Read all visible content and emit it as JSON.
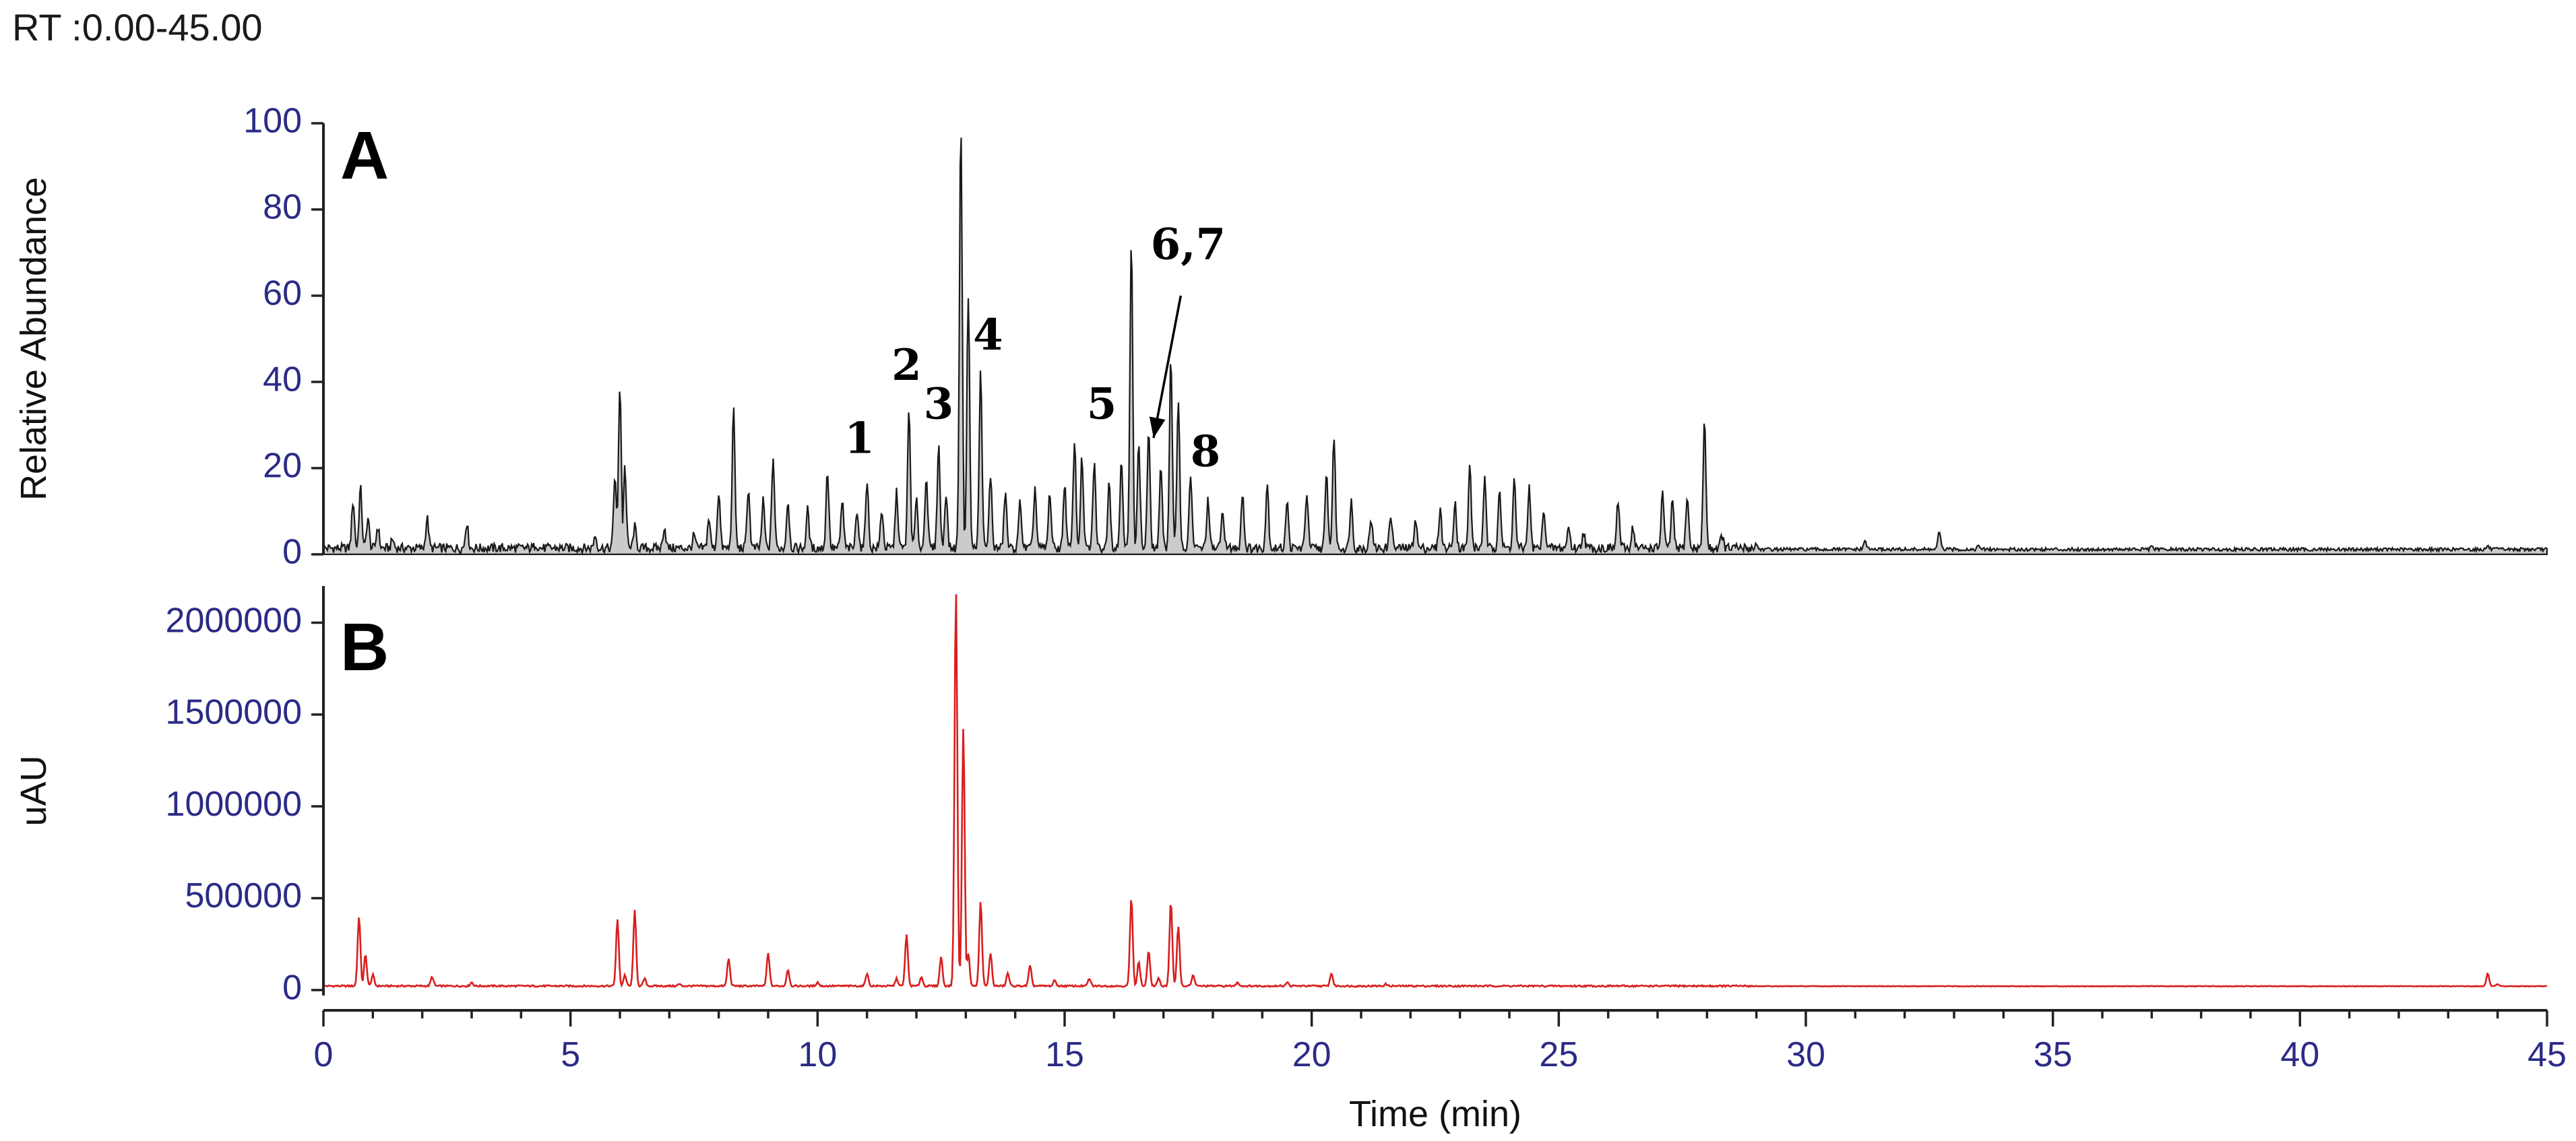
{
  "header": {
    "rt_range": "RT :0.00-45.00"
  },
  "colors": {
    "trace_a": "#1a1a1a",
    "trace_b": "#d81e1e",
    "tick_labels": "#2b2b86"
  },
  "chart_data": [
    {
      "type": "line",
      "panel_label": "A",
      "xlabel": "",
      "ylabel": "Relative Abundance",
      "xlim": [
        0,
        45
      ],
      "ylim": [
        0,
        100
      ],
      "x_ticks": [
        0,
        5,
        10,
        15,
        20,
        25,
        30,
        35,
        40,
        45
      ],
      "y_ticks": [
        0,
        20,
        40,
        60,
        80,
        100
      ],
      "baseline": 1,
      "peaks": [
        [
          0.6,
          12
        ],
        [
          0.75,
          15
        ],
        [
          0.9,
          8
        ],
        [
          1.1,
          6
        ],
        [
          1.4,
          3
        ],
        [
          2.1,
          8
        ],
        [
          2.9,
          7
        ],
        [
          4.3,
          2
        ],
        [
          5.5,
          4
        ],
        [
          5.9,
          18
        ],
        [
          6.0,
          39
        ],
        [
          6.1,
          20
        ],
        [
          6.3,
          6
        ],
        [
          6.9,
          6
        ],
        [
          7.5,
          4
        ],
        [
          7.8,
          8
        ],
        [
          8.0,
          14
        ],
        [
          8.3,
          33
        ],
        [
          8.6,
          15
        ],
        [
          8.9,
          12
        ],
        [
          9.1,
          22
        ],
        [
          9.4,
          12
        ],
        [
          9.8,
          10
        ],
        [
          10.2,
          19
        ],
        [
          10.5,
          12
        ],
        [
          10.8,
          10
        ],
        [
          11.0,
          17
        ],
        [
          11.3,
          10
        ],
        [
          11.6,
          14
        ],
        [
          11.85,
          33
        ],
        [
          12.0,
          12
        ],
        [
          12.2,
          18
        ],
        [
          12.45,
          25
        ],
        [
          12.6,
          14
        ],
        [
          12.9,
          100
        ],
        [
          13.05,
          60
        ],
        [
          13.3,
          42
        ],
        [
          13.5,
          18
        ],
        [
          13.8,
          14
        ],
        [
          14.1,
          12
        ],
        [
          14.4,
          15
        ],
        [
          14.7,
          14
        ],
        [
          15.0,
          16
        ],
        [
          15.2,
          26
        ],
        [
          15.35,
          22
        ],
        [
          15.6,
          21
        ],
        [
          15.9,
          17
        ],
        [
          16.15,
          22
        ],
        [
          16.35,
          72
        ],
        [
          16.5,
          25
        ],
        [
          16.7,
          28
        ],
        [
          16.95,
          20
        ],
        [
          17.15,
          45
        ],
        [
          17.3,
          36
        ],
        [
          17.55,
          18
        ],
        [
          17.9,
          12
        ],
        [
          18.2,
          10
        ],
        [
          18.6,
          14
        ],
        [
          19.1,
          16
        ],
        [
          19.5,
          12
        ],
        [
          19.9,
          14
        ],
        [
          20.3,
          18
        ],
        [
          20.45,
          27
        ],
        [
          20.8,
          12
        ],
        [
          21.2,
          8
        ],
        [
          21.6,
          9
        ],
        [
          22.1,
          8
        ],
        [
          22.6,
          10
        ],
        [
          22.9,
          12
        ],
        [
          23.2,
          20
        ],
        [
          23.5,
          17
        ],
        [
          23.8,
          15
        ],
        [
          24.1,
          17
        ],
        [
          24.4,
          15
        ],
        [
          24.7,
          10
        ],
        [
          25.2,
          6
        ],
        [
          25.5,
          5
        ],
        [
          26.2,
          12
        ],
        [
          26.5,
          6
        ],
        [
          27.1,
          14
        ],
        [
          27.3,
          12
        ],
        [
          27.6,
          13
        ],
        [
          27.95,
          31
        ],
        [
          28.3,
          4
        ],
        [
          29.0,
          2
        ],
        [
          31.2,
          3
        ],
        [
          32.7,
          5
        ],
        [
          33.5,
          1.8
        ],
        [
          37.0,
          1.5
        ],
        [
          43.8,
          1.8
        ]
      ],
      "peak_labels": [
        {
          "text": "1",
          "x": 10.85,
          "y": 23.5
        },
        {
          "text": "2",
          "x": 11.8,
          "y": 40.5
        },
        {
          "text": "3",
          "x": 12.45,
          "y": 31.5
        },
        {
          "text": "4",
          "x": 13.45,
          "y": 47.5
        },
        {
          "text": "5",
          "x": 15.75,
          "y": 31.5
        },
        {
          "text": "6,7",
          "x": 17.5,
          "y": 68.5
        },
        {
          "text": "8",
          "x": 17.85,
          "y": 20.5
        }
      ],
      "annotation_arrow": {
        "from": [
          17.35,
          60
        ],
        "to": [
          16.8,
          27
        ],
        "label": "6,7"
      }
    },
    {
      "type": "line",
      "panel_label": "B",
      "xlabel": "Time (min)",
      "ylabel": "uAU",
      "xlim": [
        0,
        45
      ],
      "ylim": [
        -30000,
        2200000
      ],
      "x_ticks": [
        0,
        5,
        10,
        15,
        20,
        25,
        30,
        35,
        40,
        45
      ],
      "y_ticks": [
        0,
        500000,
        1000000,
        1500000,
        2000000
      ],
      "baseline": 20000,
      "peaks": [
        [
          0.72,
          400000
        ],
        [
          0.85,
          190000
        ],
        [
          1.0,
          80000
        ],
        [
          2.2,
          70000
        ],
        [
          3.0,
          40000
        ],
        [
          4.5,
          20000
        ],
        [
          5.95,
          380000
        ],
        [
          6.1,
          80000
        ],
        [
          6.3,
          430000
        ],
        [
          6.5,
          60000
        ],
        [
          7.2,
          30000
        ],
        [
          8.2,
          170000
        ],
        [
          9.0,
          200000
        ],
        [
          9.4,
          110000
        ],
        [
          10.0,
          40000
        ],
        [
          11.0,
          90000
        ],
        [
          11.6,
          60000
        ],
        [
          11.8,
          300000
        ],
        [
          12.1,
          70000
        ],
        [
          12.5,
          180000
        ],
        [
          12.8,
          2180000
        ],
        [
          12.95,
          1420000
        ],
        [
          13.05,
          200000
        ],
        [
          13.3,
          480000
        ],
        [
          13.5,
          200000
        ],
        [
          13.85,
          90000
        ],
        [
          14.3,
          130000
        ],
        [
          14.8,
          50000
        ],
        [
          15.5,
          60000
        ],
        [
          16.35,
          500000
        ],
        [
          16.5,
          150000
        ],
        [
          16.7,
          210000
        ],
        [
          16.9,
          60000
        ],
        [
          17.15,
          480000
        ],
        [
          17.3,
          350000
        ],
        [
          17.6,
          80000
        ],
        [
          18.5,
          40000
        ],
        [
          19.5,
          40000
        ],
        [
          20.4,
          90000
        ],
        [
          21.5,
          30000
        ],
        [
          43.8,
          90000
        ],
        [
          44.0,
          30000
        ]
      ]
    }
  ]
}
